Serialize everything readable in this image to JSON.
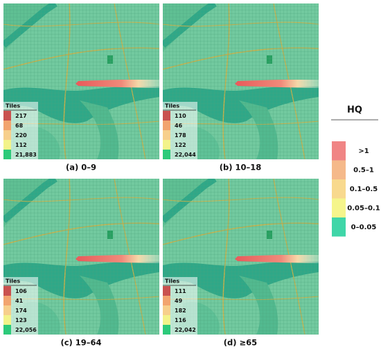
{
  "panels": [
    {
      "caption": "(a) 0–9",
      "legend_title": "Tiles",
      "counts": [
        "217",
        "68",
        "220",
        "112",
        "21,883"
      ]
    },
    {
      "caption": "(b) 10–18",
      "legend_title": "Tiles",
      "counts": [
        "110",
        "46",
        "178",
        "122",
        "22,044"
      ]
    },
    {
      "caption": "(c) 19–64",
      "legend_title": "Tiles",
      "counts": [
        "106",
        "41",
        "174",
        "123",
        "22,056"
      ]
    },
    {
      "caption": "(d) ≥65",
      "legend_title": "Tiles",
      "counts": [
        "111",
        "49",
        "182",
        "116",
        "22,042"
      ]
    }
  ],
  "hq_legend": {
    "title": "HQ",
    "items": [
      ">1",
      "0.5–1",
      "0.1–0.5",
      "0.05–0.1",
      "0–0.05"
    ]
  }
}
